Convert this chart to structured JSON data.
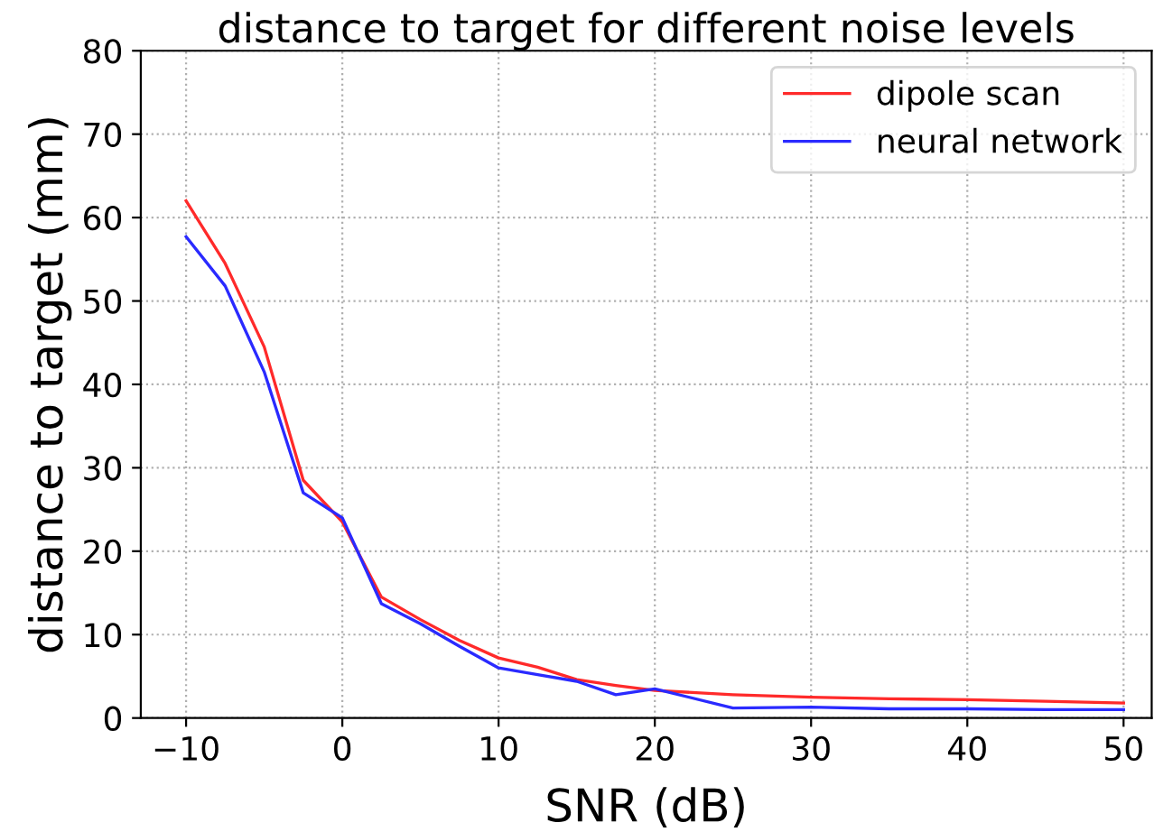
{
  "chart_data": {
    "type": "line",
    "title": "distance to target for different noise levels",
    "xlabel": "SNR (dB)",
    "ylabel": "distance to target (mm)",
    "xlim": [
      -12.9,
      51.8
    ],
    "ylim": [
      0,
      80
    ],
    "xticks": [
      {
        "value": -10,
        "label": "−10"
      },
      0,
      10,
      20,
      30,
      40,
      50
    ],
    "yticks": [
      0,
      10,
      20,
      30,
      40,
      50,
      60,
      70,
      80
    ],
    "grid": true,
    "legend": "top right",
    "marker": "none",
    "line_style": "solid",
    "series": [
      {
        "name": "dipole scan",
        "color": "#ff2a2a",
        "x": [
          -10,
          -7.5,
          -5,
          -2.5,
          0,
          2.5,
          5,
          7.5,
          10,
          12.5,
          15,
          17.5,
          20,
          25,
          30,
          35,
          40,
          45,
          50
        ],
        "values": [
          62,
          54.5,
          44.5,
          28.5,
          23.5,
          14.5,
          11.8,
          9.3,
          7.2,
          6.1,
          4.6,
          3.9,
          3.3,
          2.8,
          2.5,
          2.3,
          2.2,
          2.0,
          1.8
        ]
      },
      {
        "name": "neural network",
        "color": "#2a2aff",
        "x": [
          -10,
          -7.5,
          -5,
          -2.5,
          0,
          2.5,
          5,
          7.5,
          10,
          12.5,
          15,
          17.5,
          20,
          25,
          30,
          35,
          40,
          45,
          50
        ],
        "values": [
          57.7,
          51.8,
          41.5,
          27,
          24,
          13.7,
          11.3,
          8.6,
          6.0,
          5.2,
          4.4,
          2.8,
          3.5,
          1.2,
          1.3,
          1.1,
          1.1,
          1.0,
          1.0
        ]
      }
    ]
  }
}
